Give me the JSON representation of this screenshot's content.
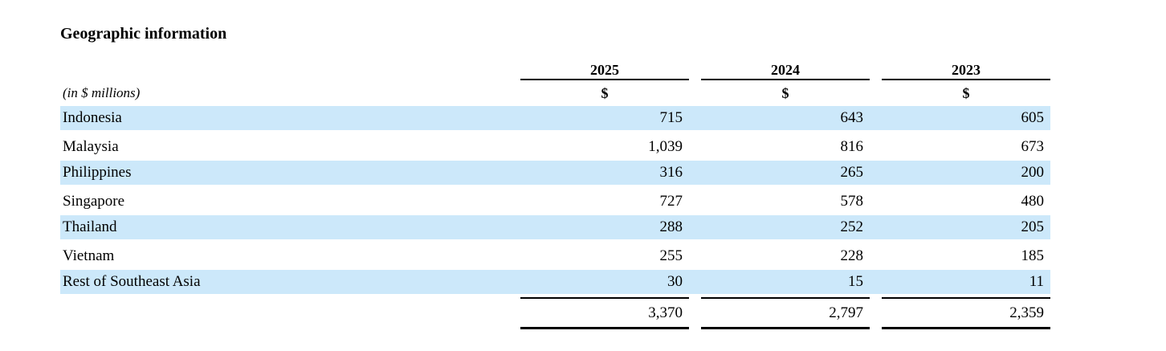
{
  "title": "Geographic information",
  "table": {
    "unit_label": "(in $ millions)",
    "currency_symbol": "$",
    "years": [
      "2025",
      "2024",
      "2023"
    ],
    "rows": [
      {
        "label": "Indonesia",
        "values": [
          "715",
          "643",
          "605"
        ]
      },
      {
        "label": "Malaysia",
        "values": [
          "1,039",
          "816",
          "673"
        ]
      },
      {
        "label": "Philippines",
        "values": [
          "316",
          "265",
          "200"
        ]
      },
      {
        "label": "Singapore",
        "values": [
          "727",
          "578",
          "480"
        ]
      },
      {
        "label": "Thailand",
        "values": [
          "288",
          "252",
          "205"
        ]
      },
      {
        "label": "Vietnam",
        "values": [
          "255",
          "228",
          "185"
        ]
      },
      {
        "label": "Rest of Southeast Asia",
        "values": [
          "30",
          "15",
          "11"
        ]
      }
    ],
    "total": {
      "values": [
        "3,370",
        "2,797",
        "2,359"
      ]
    },
    "colors": {
      "row_highlight": "#cce8fa",
      "rule": "#000000"
    }
  }
}
